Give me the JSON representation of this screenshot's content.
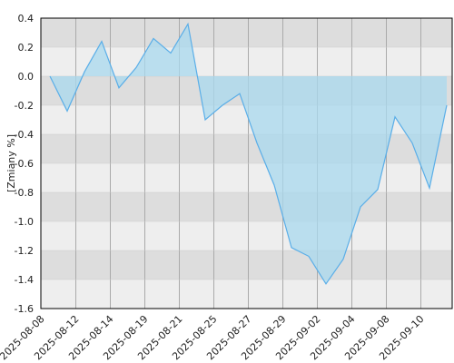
{
  "chart_data": {
    "type": "area",
    "y_label": "[Zmiany %]",
    "categories": [
      "2025-08-08",
      null,
      "2025-08-12",
      null,
      "2025-08-14",
      null,
      "2025-08-19",
      null,
      "2025-08-21",
      null,
      "2025-08-25",
      null,
      "2025-08-27",
      null,
      "2025-08-29",
      null,
      "2025-09-02",
      null,
      "2025-09-04",
      null,
      "2025-09-08",
      null,
      "2025-09-10",
      null
    ],
    "values": [
      0.0,
      -0.24,
      0.03,
      0.24,
      -0.08,
      0.06,
      0.26,
      0.16,
      0.36,
      -0.3,
      -0.2,
      -0.12,
      -0.46,
      -0.75,
      -1.18,
      -1.24,
      -1.43,
      -1.26,
      -0.9,
      -0.78,
      -0.28,
      -0.46,
      -0.77,
      -0.2
    ],
    "color": "#5aaee8",
    "fill": "#a8d8ee",
    "ylim": [
      -1.6,
      0.4
    ],
    "yticks": [
      {
        "value": -1.6,
        "label": "-1.6"
      },
      -1.4,
      -1.2,
      {
        "value": -1,
        "label": "-1.0"
      },
      -0.8,
      -0.6,
      -0.4,
      -0.2,
      {
        "value": 0,
        "label": "0.0"
      },
      0.2,
      0.4
    ],
    "stripes": [
      "#eeeeee",
      "#dddddd"
    ],
    "grid": true
  }
}
